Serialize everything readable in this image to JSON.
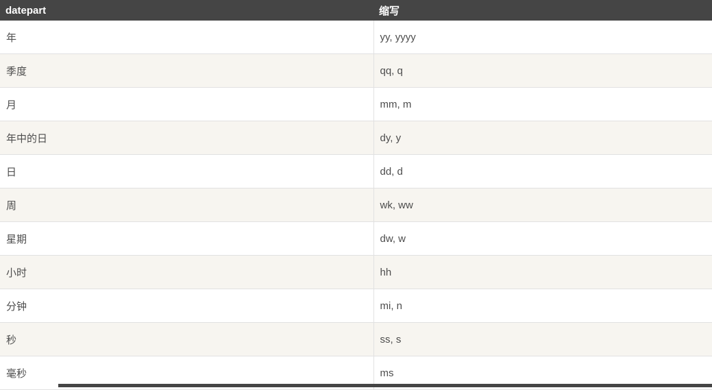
{
  "table": {
    "columns": [
      {
        "label": "datepart"
      },
      {
        "label": "缩写"
      }
    ],
    "rows": [
      [
        "年",
        "yy, yyyy"
      ],
      [
        "季度",
        "qq, q"
      ],
      [
        "月",
        "mm, m"
      ],
      [
        "年中的日",
        "dy, y"
      ],
      [
        "日",
        "dd, d"
      ],
      [
        "周",
        "wk, ww"
      ],
      [
        "星期",
        "dw, w"
      ],
      [
        "小时",
        "hh"
      ],
      [
        "分钟",
        "mi, n"
      ],
      [
        "秒",
        "ss, s"
      ],
      [
        "毫秒",
        "ms"
      ]
    ]
  },
  "colors": {
    "header_bg": "#454545",
    "header_text": "#ffffff",
    "row_bg": "#ffffff",
    "row_alt_bg": "#f7f5f0",
    "border": "#e1e1e1",
    "body_text": "#4d4d4d"
  }
}
